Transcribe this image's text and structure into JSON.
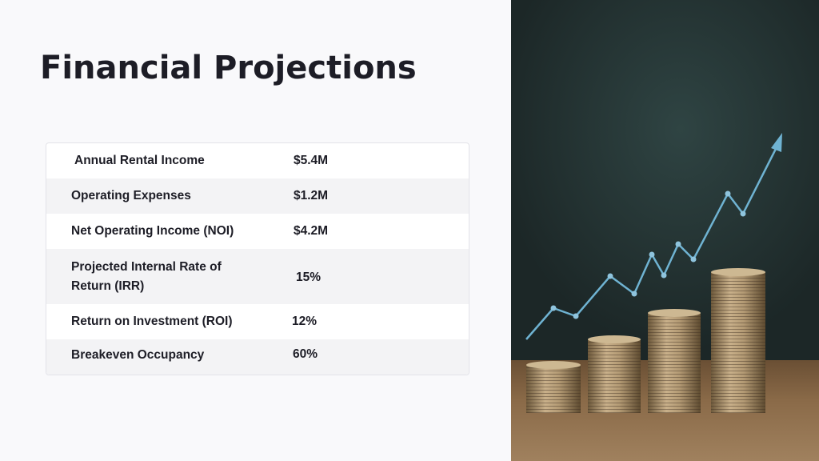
{
  "slide": {
    "title": "Financial Projections"
  },
  "table": {
    "rows": [
      {
        "label": "Annual Rental Income",
        "value": "$5.4M"
      },
      {
        "label": "Operating Expenses",
        "value": "$1.2M"
      },
      {
        "label": "Net Operating Income (NOI)",
        "value": "$4.2M"
      },
      {
        "label": "Projected Internal Rate of Return (IRR)",
        "value": "15%"
      },
      {
        "label": "Return on Investment (ROI)",
        "value": "12%"
      },
      {
        "label": "Breakeven Occupancy",
        "value": "60%"
      }
    ]
  },
  "image": {
    "icon": "coin-stacks-growth-chart-icon",
    "accent_color": "#6fb3d2"
  }
}
